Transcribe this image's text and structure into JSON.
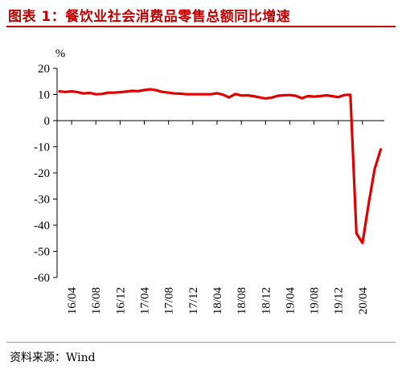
{
  "header": {
    "title": "图表 1：餐饮业社会消费品零售总额同比增速"
  },
  "footer": {
    "source": "资料来源：Wind"
  },
  "chart_data": {
    "type": "line",
    "title": "图表 1：餐饮业社会消费品零售总额同比增速",
    "ylabel": "%",
    "xlabel": "",
    "ylim": [
      -60,
      20
    ],
    "yticks": [
      20,
      10,
      0,
      -10,
      -20,
      -30,
      -40,
      -50,
      -60
    ],
    "xticklabels": [
      "16/04",
      "16/08",
      "16/12",
      "17/04",
      "17/08",
      "17/12",
      "18/04",
      "18/08",
      "18/12",
      "19/04",
      "19/08",
      "19/12",
      "20/04"
    ],
    "grid": false,
    "legend": "none",
    "line_color": "#e00000",
    "series": [
      {
        "x": [
          "16/02",
          "16/03",
          "16/04",
          "16/05",
          "16/06",
          "16/07",
          "16/08",
          "16/09",
          "16/10",
          "16/11",
          "16/12",
          "17/01",
          "17/02",
          "17/03",
          "17/04",
          "17/05",
          "17/06",
          "17/07",
          "17/08",
          "17/09",
          "17/10",
          "17/11",
          "17/12",
          "18/01",
          "18/02",
          "18/03",
          "18/04",
          "18/05",
          "18/06",
          "18/07",
          "18/08",
          "18/09",
          "18/10",
          "18/11",
          "18/12",
          "19/01",
          "19/02",
          "19/03",
          "19/04",
          "19/05",
          "19/06",
          "19/07",
          "19/08",
          "19/09",
          "19/10",
          "19/11",
          "19/12",
          "20/01",
          "20/02",
          "20/03",
          "20/04",
          "20/05",
          "20/06",
          "20/07"
        ],
        "values": [
          11.2,
          11.0,
          11.2,
          10.9,
          10.4,
          10.6,
          10.1,
          10.2,
          10.7,
          10.7,
          10.9,
          11.1,
          11.4,
          11.3,
          11.7,
          12.0,
          11.6,
          11.0,
          10.7,
          10.4,
          10.3,
          10.1,
          10.1,
          10.1,
          10.1,
          10.1,
          10.5,
          9.9,
          8.9,
          10.2,
          9.6,
          9.7,
          9.4,
          8.9,
          8.5,
          8.8,
          9.5,
          9.7,
          9.8,
          9.5,
          8.6,
          9.4,
          9.2,
          9.4,
          9.7,
          9.4,
          9.0,
          9.8,
          9.9,
          -43.1,
          -46.8,
          -32.0,
          -18.6,
          -11.0
        ]
      }
    ]
  }
}
